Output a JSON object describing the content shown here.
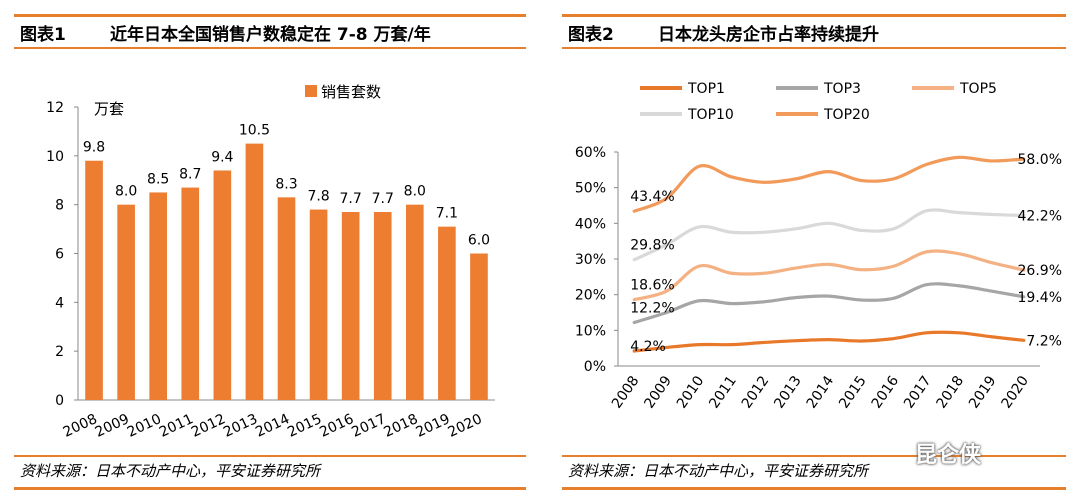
{
  "panel1": {
    "figure_label": "图表1",
    "title": "近年日本全国销售户数稳定在 7-8 万套/年",
    "source": "资料来源：日本不动产中心，平安证券研究所"
  },
  "panel2": {
    "figure_label": "图表2",
    "title": "日本龙头房企市占率持续提升",
    "source": "资料来源：日本不动产中心，平安证券研究所"
  },
  "watermark": "昆仑侠",
  "colors": {
    "accent": "#E57F2C",
    "bar": "#ED7D31"
  },
  "chart_data": [
    {
      "type": "bar",
      "categories": [
        "2008",
        "2009",
        "2010",
        "2011",
        "2012",
        "2013",
        "2014",
        "2015",
        "2016",
        "2017",
        "2018",
        "2019",
        "2020"
      ],
      "series": [
        {
          "name": "销售套数",
          "values": [
            9.8,
            8.0,
            8.5,
            8.7,
            9.4,
            10.5,
            8.3,
            7.8,
            7.7,
            7.7,
            8.0,
            7.1,
            6.0
          ]
        }
      ],
      "data_labels": [
        "9.8",
        "8.0",
        "8.5",
        "8.7",
        "9.4",
        "10.5",
        "8.3",
        "7.8",
        "7.7",
        "7.7",
        "8.0",
        "7.1",
        "6.0"
      ],
      "yunit": "万套",
      "ylim": [
        0,
        12
      ],
      "yticks": [
        "0",
        "2",
        "4",
        "6",
        "8",
        "10",
        "12"
      ],
      "legend_position": "top",
      "grid": false
    },
    {
      "type": "line",
      "categories": [
        "2008",
        "2009",
        "2010",
        "2011",
        "2012",
        "2013",
        "2014",
        "2015",
        "2016",
        "2017",
        "2018",
        "2019",
        "2020"
      ],
      "series": [
        {
          "name": "TOP1",
          "color": "#E8782A",
          "values": [
            4.2,
            5.2,
            6.0,
            6.0,
            6.6,
            7.1,
            7.4,
            7.0,
            7.7,
            9.3,
            9.3,
            8.2,
            7.2
          ]
        },
        {
          "name": "TOP3",
          "color": "#A6A6A6",
          "values": [
            12.2,
            15.0,
            18.3,
            17.5,
            18.0,
            19.2,
            19.6,
            18.5,
            19.0,
            22.8,
            22.5,
            21.0,
            19.4
          ]
        },
        {
          "name": "TOP5",
          "color": "#F4B183",
          "values": [
            18.6,
            21.0,
            28.0,
            26.0,
            26.0,
            27.5,
            28.5,
            27.0,
            28.0,
            32.0,
            31.5,
            29.0,
            26.9
          ]
        },
        {
          "name": "TOP10",
          "color": "#D9D9D9",
          "values": [
            29.8,
            34.0,
            39.0,
            37.5,
            37.5,
            38.5,
            40.0,
            38.0,
            38.5,
            43.5,
            43.0,
            42.5,
            42.2
          ]
        },
        {
          "name": "TOP20",
          "color": "#F19A5A",
          "values": [
            43.4,
            47.0,
            56.0,
            53.0,
            51.5,
            52.5,
            54.5,
            52.0,
            52.5,
            56.5,
            58.5,
            57.5,
            58.0
          ]
        }
      ],
      "data_labels": {
        "start": [
          "4.2%",
          "12.2%",
          "18.6%",
          "29.8%",
          "43.4%"
        ],
        "end": [
          "7.2%",
          "19.4%",
          "26.9%",
          "42.2%",
          "58.0%"
        ]
      },
      "ylim": [
        0,
        60
      ],
      "yticks": [
        "0%",
        "10%",
        "20%",
        "30%",
        "40%",
        "50%",
        "60%"
      ],
      "legend_position": "top",
      "grid": false
    }
  ]
}
